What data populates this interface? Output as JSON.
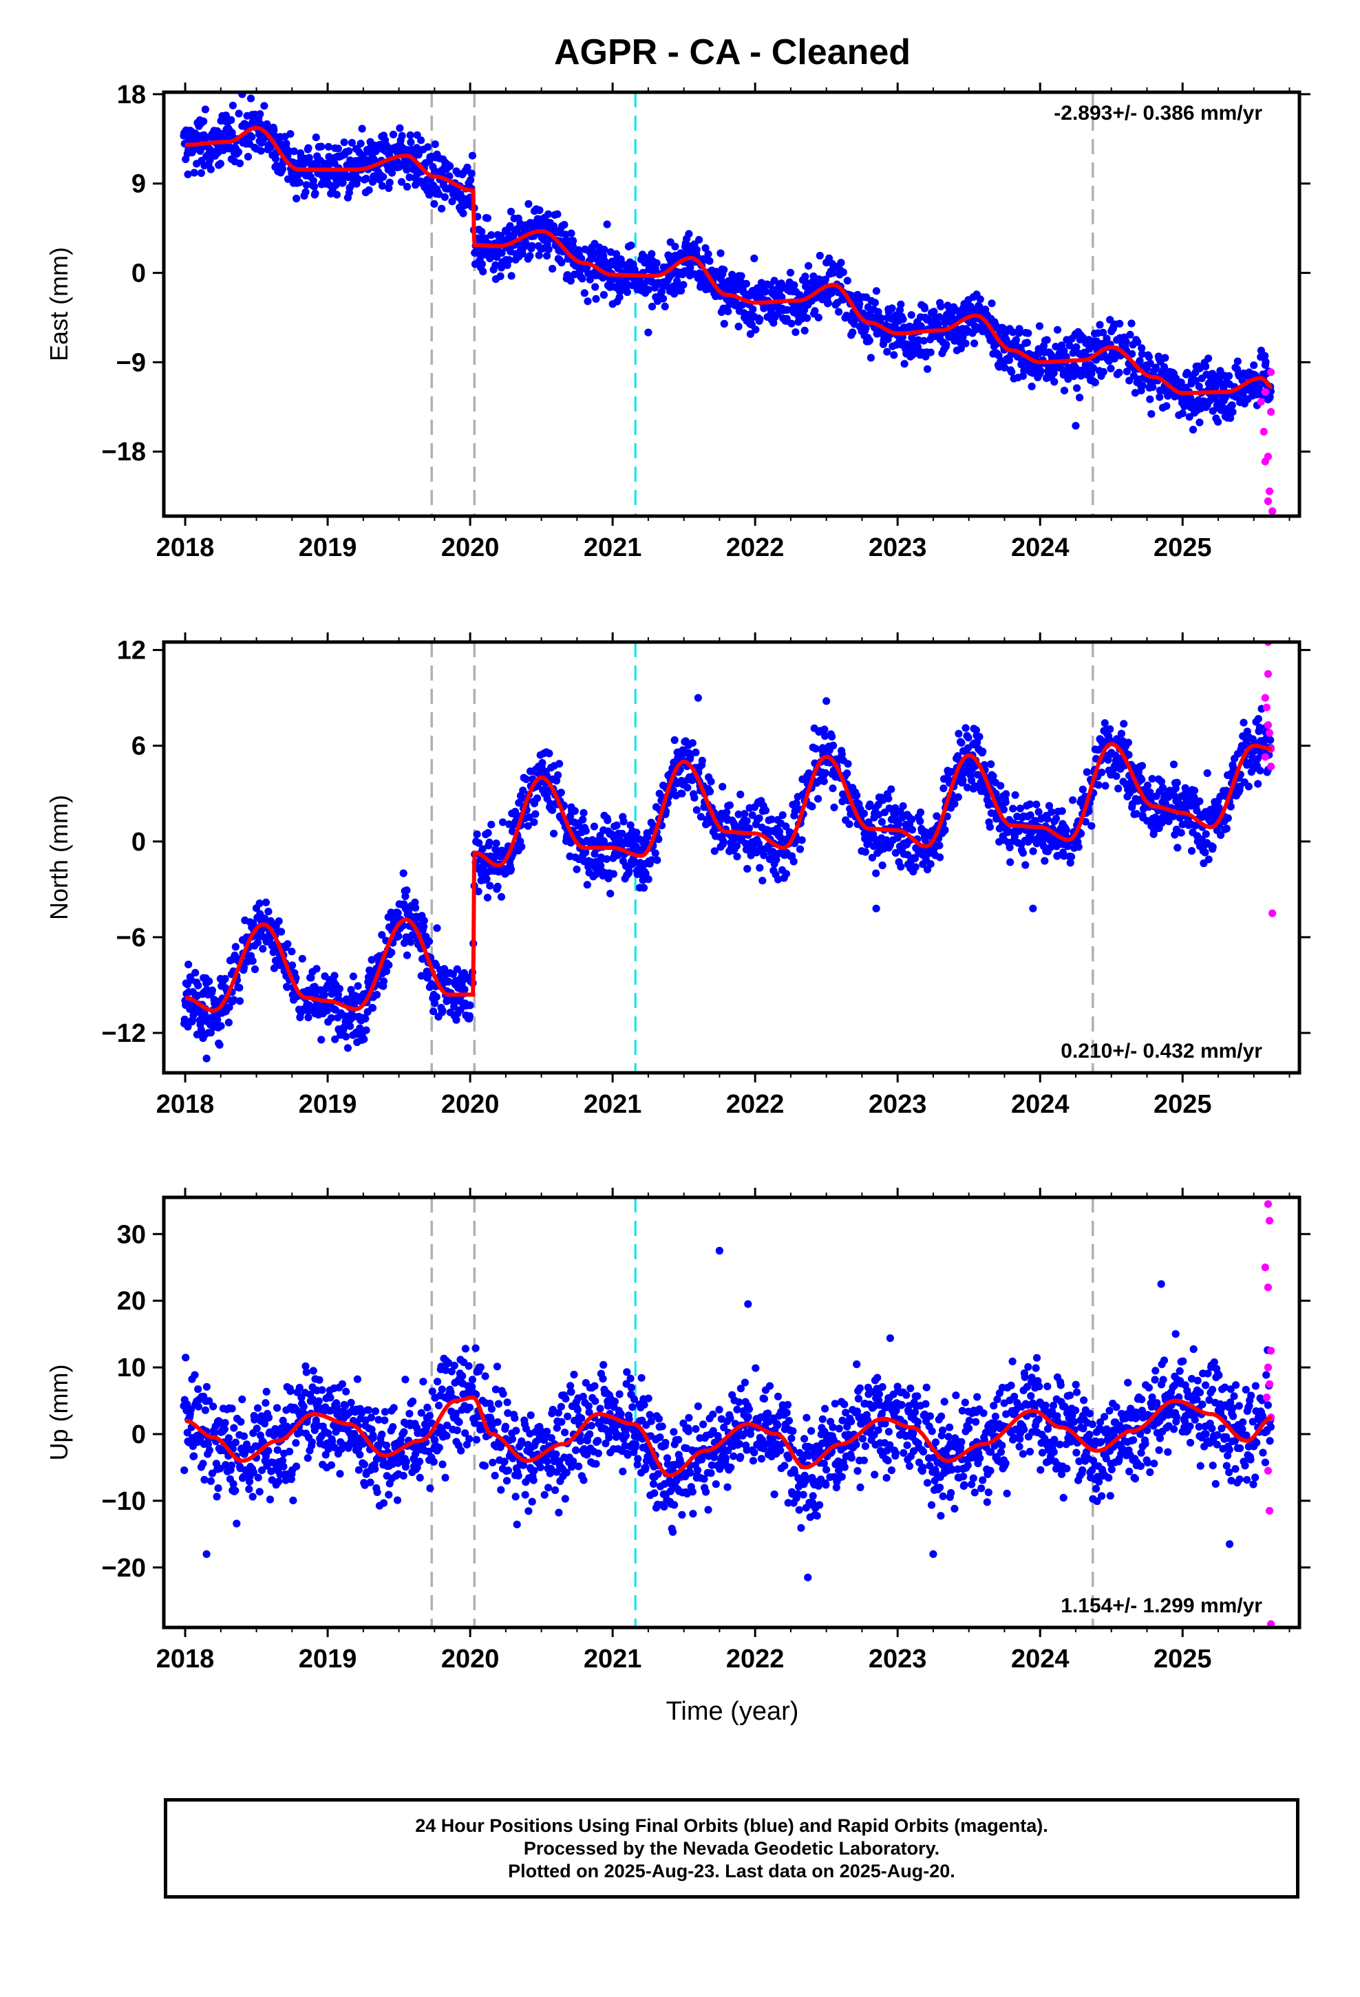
{
  "figure": {
    "title": "AGPR  - CA - Cleaned",
    "xlabel": "Time (year)",
    "footer": [
      "24 Hour Positions Using Final Orbits (blue) and Rapid Orbits (magenta).",
      "Processed by the Nevada Geodetic Laboratory.",
      "Plotted on 2025-Aug-23. Last data on 2025-Aug-20."
    ]
  },
  "colors": {
    "final_orbits": "#0000ff",
    "rapid_orbits": "#ff00ff",
    "model": "#ff0000",
    "event_gray": "#b0b0b0",
    "event_cyan": "#00e5ee"
  },
  "chart_data": [
    {
      "type": "scatter",
      "component": "East",
      "ylabel": "East (mm)",
      "ylim": [
        -24.5,
        18.2
      ],
      "xlim": [
        2017.85,
        2025.82
      ],
      "yticks": [
        18,
        9,
        0,
        -9,
        -18
      ],
      "xticks": [
        2018,
        2019,
        2020,
        2021,
        2022,
        2023,
        2024,
        2025
      ],
      "rate_label": "-2.893+/- 0.386 mm/yr",
      "rate_label_position": "top-right",
      "events": [
        {
          "x": 2019.73,
          "color": "gray"
        },
        {
          "x": 2020.03,
          "color": "gray"
        },
        {
          "x": 2021.16,
          "color": "cyan"
        },
        {
          "x": 2024.37,
          "color": "gray"
        }
      ],
      "model": {
        "knots": [
          [
            2018.0,
            12.9
          ],
          [
            2018.3,
            13.2
          ],
          [
            2018.5,
            14.6
          ],
          [
            2018.8,
            10.4
          ],
          [
            2019.2,
            10.4
          ],
          [
            2019.55,
            11.8
          ],
          [
            2019.75,
            9.7
          ],
          [
            2020.02,
            8.3
          ],
          [
            2020.03,
            2.8
          ],
          [
            2020.2,
            2.7
          ],
          [
            2020.5,
            4.2
          ],
          [
            2020.8,
            1.0
          ],
          [
            2021.0,
            -0.2
          ],
          [
            2021.3,
            -0.3
          ],
          [
            2021.55,
            1.5
          ],
          [
            2021.8,
            -2.2
          ],
          [
            2022.0,
            -3.0
          ],
          [
            2022.3,
            -2.8
          ],
          [
            2022.55,
            -1.2
          ],
          [
            2022.8,
            -5.0
          ],
          [
            2023.0,
            -6.1
          ],
          [
            2023.3,
            -5.8
          ],
          [
            2023.55,
            -4.3
          ],
          [
            2023.8,
            -7.8
          ],
          [
            2024.0,
            -9.0
          ],
          [
            2024.3,
            -8.8
          ],
          [
            2024.5,
            -7.5
          ],
          [
            2024.8,
            -10.5
          ],
          [
            2025.0,
            -12.1
          ],
          [
            2025.3,
            -12.0
          ],
          [
            2025.55,
            -10.6
          ],
          [
            2025.63,
            -11.5
          ]
        ],
        "note": "seasonal model fit"
      },
      "series": [
        {
          "name": "Final Orbits",
          "color": "blue",
          "scatter_mm": 2.0,
          "outliers": [
            [
              2024.25,
              -15.4
            ],
            [
              2021.25,
              -6.0
            ],
            [
              2018.4,
              18.0
            ]
          ]
        },
        {
          "name": "Rapid Orbits",
          "color": "magenta",
          "points": [
            [
              2025.55,
              -13.0
            ],
            [
              2025.57,
              -16.0
            ],
            [
              2025.58,
              -19.0
            ],
            [
              2025.6,
              -18.5
            ],
            [
              2025.6,
              -23.0
            ],
            [
              2025.61,
              -22.0
            ],
            [
              2025.62,
              -14.0
            ],
            [
              2025.62,
              -10.0
            ],
            [
              2025.63,
              -24.0
            ],
            [
              2025.58,
              -12.0
            ]
          ]
        }
      ]
    },
    {
      "type": "scatter",
      "component": "North",
      "ylabel": "North (mm)",
      "ylim": [
        -14.5,
        12.5
      ],
      "xlim": [
        2017.85,
        2025.82
      ],
      "yticks": [
        12,
        6,
        0,
        -6,
        -12
      ],
      "xticks": [
        2018,
        2019,
        2020,
        2021,
        2022,
        2023,
        2024,
        2025
      ],
      "rate_label": "0.210+/- 0.432 mm/yr",
      "rate_label_position": "bottom-right",
      "events": [
        {
          "x": 2019.73,
          "color": "gray"
        },
        {
          "x": 2020.03,
          "color": "gray"
        },
        {
          "x": 2021.16,
          "color": "cyan"
        },
        {
          "x": 2024.37,
          "color": "gray"
        }
      ],
      "model": {
        "knots": [
          [
            2018.0,
            -9.8
          ],
          [
            2018.2,
            -10.6
          ],
          [
            2018.55,
            -5.2
          ],
          [
            2018.85,
            -9.8
          ],
          [
            2019.0,
            -10.0
          ],
          [
            2019.2,
            -10.5
          ],
          [
            2019.55,
            -4.9
          ],
          [
            2019.85,
            -9.6
          ],
          [
            2020.02,
            -9.6
          ],
          [
            2020.03,
            -0.7
          ],
          [
            2020.2,
            -1.5
          ],
          [
            2020.5,
            4.0
          ],
          [
            2020.8,
            -0.4
          ],
          [
            2021.0,
            -0.4
          ],
          [
            2021.2,
            -0.9
          ],
          [
            2021.5,
            5.0
          ],
          [
            2021.8,
            0.6
          ],
          [
            2022.0,
            0.5
          ],
          [
            2022.2,
            -0.4
          ],
          [
            2022.5,
            5.3
          ],
          [
            2022.8,
            0.8
          ],
          [
            2023.0,
            0.7
          ],
          [
            2023.2,
            -0.3
          ],
          [
            2023.5,
            5.4
          ],
          [
            2023.8,
            1.0
          ],
          [
            2024.0,
            0.9
          ],
          [
            2024.2,
            0.1
          ],
          [
            2024.5,
            6.1
          ],
          [
            2024.8,
            2.2
          ],
          [
            2025.0,
            1.8
          ],
          [
            2025.2,
            0.9
          ],
          [
            2025.5,
            6.0
          ],
          [
            2025.63,
            5.8
          ]
        ],
        "note": "seasonal model fit"
      },
      "series": [
        {
          "name": "Final Orbits",
          "color": "blue",
          "scatter_mm": 1.5,
          "outliers": [
            [
              2018.15,
              -13.6
            ],
            [
              2023.95,
              -4.2
            ],
            [
              2022.85,
              -4.2
            ],
            [
              2022.5,
              8.8
            ],
            [
              2021.6,
              9.0
            ]
          ]
        },
        {
          "name": "Rapid Orbits",
          "color": "magenta",
          "points": [
            [
              2025.6,
              12.5
            ],
            [
              2025.6,
              10.5
            ],
            [
              2025.58,
              9.0
            ],
            [
              2025.59,
              8.4
            ],
            [
              2025.6,
              7.3
            ],
            [
              2025.61,
              6.8
            ],
            [
              2025.62,
              5.8
            ],
            [
              2025.58,
              5.3
            ],
            [
              2025.62,
              4.7
            ],
            [
              2025.63,
              -4.5
            ]
          ]
        }
      ]
    },
    {
      "type": "scatter",
      "component": "Up",
      "ylabel": "Up (mm)",
      "ylim": [
        -29.0,
        35.5
      ],
      "xlim": [
        2017.85,
        2025.82
      ],
      "yticks": [
        30,
        20,
        10,
        0,
        -10,
        -20
      ],
      "xticks": [
        2018,
        2019,
        2020,
        2021,
        2022,
        2023,
        2024,
        2025
      ],
      "rate_label": "1.154+/- 1.299 mm/yr",
      "rate_label_position": "bottom-right",
      "events": [
        {
          "x": 2019.73,
          "color": "gray"
        },
        {
          "x": 2020.03,
          "color": "gray"
        },
        {
          "x": 2021.16,
          "color": "cyan"
        },
        {
          "x": 2024.37,
          "color": "gray"
        }
      ],
      "model": {
        "knots": [
          [
            2018.0,
            2.0
          ],
          [
            2018.2,
            -0.5
          ],
          [
            2018.4,
            -4.0
          ],
          [
            2018.65,
            -1.0
          ],
          [
            2018.9,
            3.0
          ],
          [
            2019.15,
            1.5
          ],
          [
            2019.4,
            -3.2
          ],
          [
            2019.65,
            -1.0
          ],
          [
            2019.9,
            5.0
          ],
          [
            2020.02,
            5.5
          ],
          [
            2020.15,
            0.0
          ],
          [
            2020.4,
            -4.0
          ],
          [
            2020.65,
            -1.5
          ],
          [
            2020.9,
            3.0
          ],
          [
            2021.15,
            1.5
          ],
          [
            2021.4,
            -6.2
          ],
          [
            2021.65,
            -2.5
          ],
          [
            2021.95,
            1.5
          ],
          [
            2022.15,
            0.0
          ],
          [
            2022.35,
            -5.0
          ],
          [
            2022.6,
            -1.5
          ],
          [
            2022.9,
            2.3
          ],
          [
            2023.1,
            1.0
          ],
          [
            2023.35,
            -4.0
          ],
          [
            2023.6,
            -1.5
          ],
          [
            2023.95,
            3.5
          ],
          [
            2024.15,
            1.0
          ],
          [
            2024.4,
            -2.5
          ],
          [
            2024.65,
            0.5
          ],
          [
            2024.95,
            5.0
          ],
          [
            2025.2,
            3.0
          ],
          [
            2025.45,
            -1.0
          ],
          [
            2025.63,
            2.5
          ]
        ],
        "note": "seasonal model fit"
      },
      "series": [
        {
          "name": "Final Orbits",
          "color": "blue",
          "scatter_mm": 5.5,
          "outliers": [
            [
              2021.75,
              27.5
            ],
            [
              2022.37,
              -21.5
            ],
            [
              2018.15,
              -18.0
            ],
            [
              2024.85,
              22.5
            ],
            [
              2021.95,
              19.5
            ],
            [
              2023.25,
              -18.0
            ],
            [
              2025.33,
              -16.5
            ]
          ]
        },
        {
          "name": "Rapid Orbits",
          "color": "magenta",
          "points": [
            [
              2025.6,
              34.5
            ],
            [
              2025.61,
              32.0
            ],
            [
              2025.58,
              25.0
            ],
            [
              2025.6,
              22.0
            ],
            [
              2025.62,
              12.5
            ],
            [
              2025.6,
              10.0
            ],
            [
              2025.61,
              7.5
            ],
            [
              2025.59,
              5.5
            ],
            [
              2025.62,
              2.5
            ],
            [
              2025.6,
              -5.5
            ],
            [
              2025.61,
              -11.5
            ],
            [
              2025.62,
              -28.5
            ]
          ]
        }
      ]
    }
  ]
}
